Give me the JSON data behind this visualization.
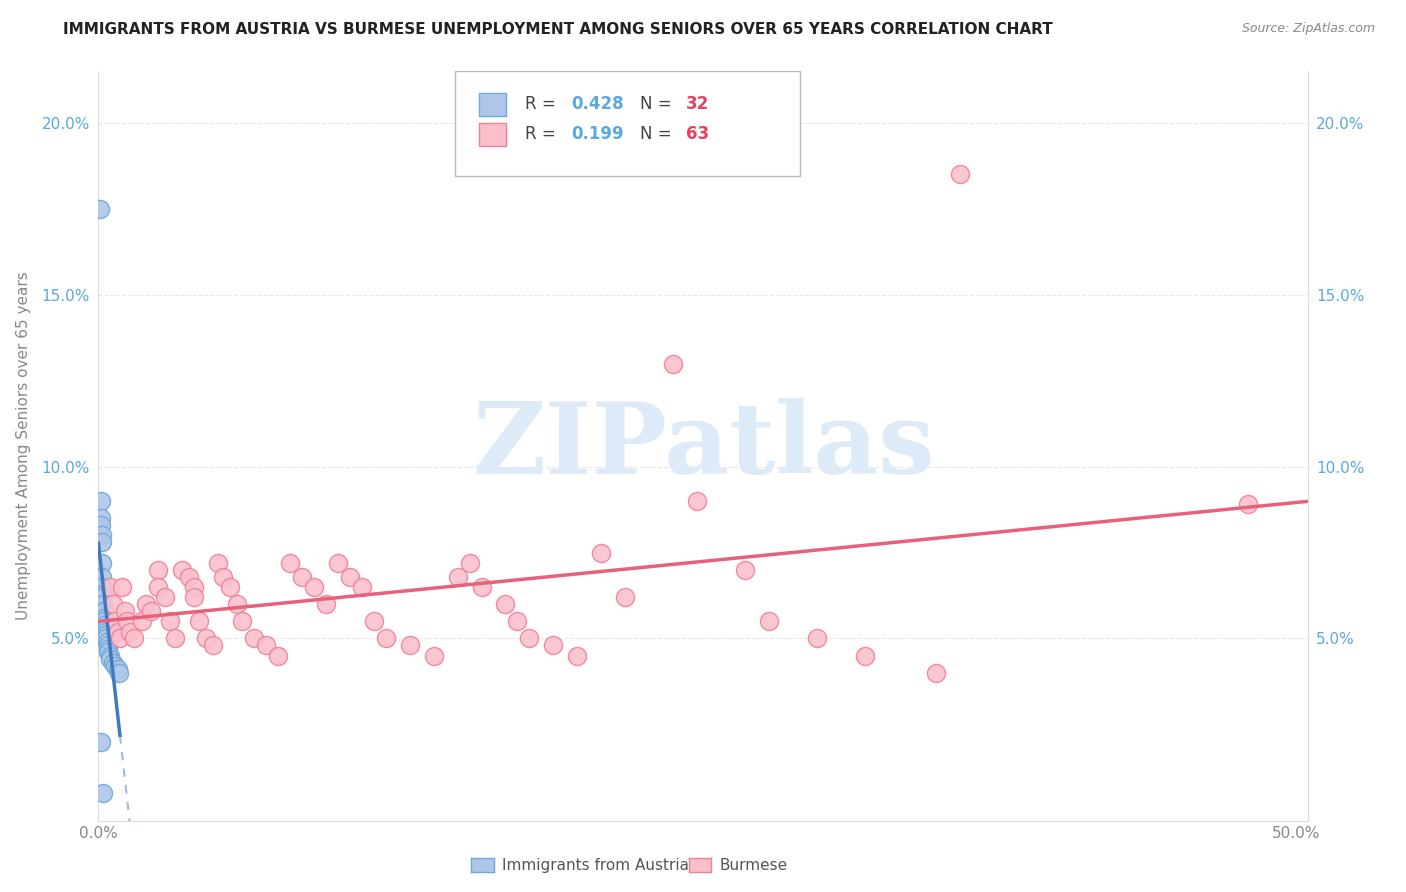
{
  "title": "IMMIGRANTS FROM AUSTRIA VS BURMESE UNEMPLOYMENT AMONG SENIORS OVER 65 YEARS CORRELATION CHART",
  "source": "Source: ZipAtlas.com",
  "ylabel": "Unemployment Among Seniors over 65 years",
  "austria_R": 0.428,
  "austria_N": 32,
  "burmese_R": 0.199,
  "burmese_N": 63,
  "austria_color": "#aec6e8",
  "austria_edge_color": "#6fa8d6",
  "austria_line_color": "#3d7abf",
  "burmese_color": "#f9c0cc",
  "burmese_edge_color": "#f08098",
  "burmese_line_color": "#e8607a",
  "austria_x": [
    0.0008,
    0.001,
    0.001,
    0.0012,
    0.0013,
    0.0015,
    0.0015,
    0.0016,
    0.0017,
    0.002,
    0.002,
    0.002,
    0.0022,
    0.0023,
    0.0025,
    0.0025,
    0.003,
    0.003,
    0.003,
    0.0032,
    0.0035,
    0.004,
    0.004,
    0.0042,
    0.005,
    0.005,
    0.006,
    0.007,
    0.008,
    0.0085,
    0.001,
    0.002
  ],
  "austria_y": [
    0.175,
    0.09,
    0.085,
    0.083,
    0.08,
    0.078,
    0.072,
    0.068,
    0.065,
    0.063,
    0.062,
    0.06,
    0.058,
    0.056,
    0.055,
    0.054,
    0.053,
    0.052,
    0.051,
    0.05,
    0.049,
    0.048,
    0.047,
    0.046,
    0.045,
    0.044,
    0.043,
    0.042,
    0.041,
    0.04,
    0.02,
    0.005
  ],
  "burmese_x": [
    0.36,
    0.005,
    0.006,
    0.007,
    0.008,
    0.009,
    0.01,
    0.011,
    0.012,
    0.013,
    0.015,
    0.018,
    0.02,
    0.022,
    0.025,
    0.025,
    0.028,
    0.03,
    0.032,
    0.035,
    0.038,
    0.04,
    0.04,
    0.042,
    0.045,
    0.048,
    0.05,
    0.052,
    0.055,
    0.058,
    0.06,
    0.065,
    0.07,
    0.075,
    0.08,
    0.085,
    0.09,
    0.095,
    0.1,
    0.105,
    0.11,
    0.115,
    0.12,
    0.13,
    0.14,
    0.15,
    0.155,
    0.16,
    0.17,
    0.175,
    0.18,
    0.19,
    0.2,
    0.21,
    0.22,
    0.24,
    0.25,
    0.27,
    0.28,
    0.3,
    0.32,
    0.35,
    0.48
  ],
  "burmese_y": [
    0.185,
    0.065,
    0.06,
    0.055,
    0.052,
    0.05,
    0.065,
    0.058,
    0.055,
    0.052,
    0.05,
    0.055,
    0.06,
    0.058,
    0.07,
    0.065,
    0.062,
    0.055,
    0.05,
    0.07,
    0.068,
    0.065,
    0.062,
    0.055,
    0.05,
    0.048,
    0.072,
    0.068,
    0.065,
    0.06,
    0.055,
    0.05,
    0.048,
    0.045,
    0.072,
    0.068,
    0.065,
    0.06,
    0.072,
    0.068,
    0.065,
    0.055,
    0.05,
    0.048,
    0.045,
    0.068,
    0.072,
    0.065,
    0.06,
    0.055,
    0.05,
    0.048,
    0.045,
    0.075,
    0.062,
    0.13,
    0.09,
    0.07,
    0.055,
    0.05,
    0.045,
    0.04,
    0.089
  ],
  "xlim": [
    0.0,
    0.505
  ],
  "ylim": [
    -0.003,
    0.215
  ],
  "yticks": [
    0.05,
    0.1,
    0.15,
    0.2
  ],
  "ytick_labels": [
    "5.0%",
    "10.0%",
    "15.0%",
    "20.0%"
  ],
  "xtick_vals": [
    0.0,
    0.1,
    0.2,
    0.3,
    0.4,
    0.5
  ],
  "xtick_labels": [
    "0.0%",
    "",
    "",
    "",
    "",
    "50.0%"
  ],
  "grid_color": "#e8e8e8",
  "watermark_text": "ZIPatlas",
  "watermark_color": "#ddeaf7",
  "bg_color": "#ffffff",
  "title_fontsize": 11,
  "tick_color": "#5ba8dc",
  "axis_label_color": "#888888"
}
